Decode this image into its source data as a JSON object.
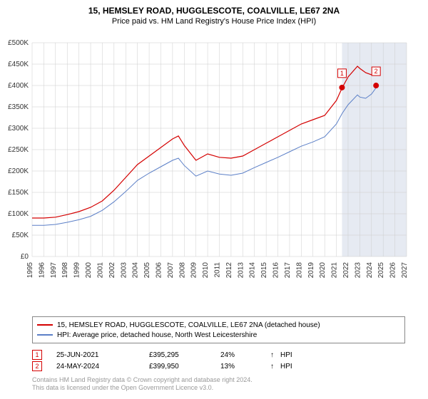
{
  "title": "15, HEMSLEY ROAD, HUGGLESCOTE, COALVILLE, LE67 2NA",
  "subtitle": "Price paid vs. HM Land Registry's House Price Index (HPI)",
  "chart": {
    "type": "line",
    "ylabel_prefix": "£",
    "ylim": [
      0,
      500000
    ],
    "ytick_step": 50000,
    "ytick_labels": [
      "£0",
      "£50K",
      "£100K",
      "£150K",
      "£200K",
      "£250K",
      "£300K",
      "£350K",
      "£400K",
      "£450K",
      "£500K"
    ],
    "xlim": [
      1995,
      2027
    ],
    "xtick_step": 1,
    "xtick_labels": [
      "1995",
      "1996",
      "1997",
      "1998",
      "1999",
      "2000",
      "2001",
      "2002",
      "2003",
      "2004",
      "2005",
      "2006",
      "2007",
      "2008",
      "2009",
      "2010",
      "2011",
      "2012",
      "2013",
      "2014",
      "2015",
      "2016",
      "2017",
      "2018",
      "2019",
      "2020",
      "2021",
      "2022",
      "2023",
      "2024",
      "2025",
      "2026",
      "2027"
    ],
    "background_color": "#ffffff",
    "grid_color": "#cccccc",
    "property_shade_color": "#e6eaf2",
    "label_fontsize": 10,
    "title_fontsize": 12,
    "series": [
      {
        "name": "property",
        "color": "#d40000",
        "width": 1.2,
        "label": "15, HEMSLEY ROAD, HUGGLESCOTE, COALVILLE, LE67 2NA (detached house)",
        "x": [
          1995,
          1996,
          1997,
          1998,
          1999,
          2000,
          2001,
          2002,
          2003,
          2004,
          2005,
          2006,
          2007,
          2007.5,
          2008,
          2009,
          2010,
          2011,
          2012,
          2013,
          2014,
          2015,
          2016,
          2017,
          2018,
          2019,
          2020,
          2021,
          2021.5,
          2022,
          2022.8,
          2023,
          2023.5,
          2024,
          2024.4
        ],
        "y": [
          90000,
          90000,
          92000,
          98000,
          105000,
          115000,
          130000,
          155000,
          185000,
          215000,
          235000,
          255000,
          275000,
          282000,
          260000,
          225000,
          240000,
          232000,
          230000,
          235000,
          250000,
          265000,
          280000,
          295000,
          310000,
          320000,
          330000,
          365000,
          395000,
          420000,
          445000,
          440000,
          430000,
          425000,
          430000
        ]
      },
      {
        "name": "hpi",
        "color": "#5b7fc7",
        "width": 1.0,
        "label": "HPI: Average price, detached house, North West Leicestershire",
        "x": [
          1995,
          1996,
          1997,
          1998,
          1999,
          2000,
          2001,
          2002,
          2003,
          2004,
          2005,
          2006,
          2007,
          2007.5,
          2008,
          2009,
          2010,
          2011,
          2012,
          2013,
          2014,
          2015,
          2016,
          2017,
          2018,
          2019,
          2020,
          2021,
          2021.5,
          2022,
          2022.8,
          2023,
          2023.5,
          2024,
          2024.4
        ],
        "y": [
          73000,
          73000,
          75000,
          80000,
          86000,
          94000,
          108000,
          128000,
          152000,
          178000,
          195000,
          210000,
          225000,
          230000,
          213000,
          188000,
          200000,
          193000,
          190000,
          195000,
          208000,
          220000,
          232000,
          245000,
          258000,
          268000,
          280000,
          310000,
          335000,
          355000,
          378000,
          373000,
          370000,
          380000,
          395000
        ]
      }
    ],
    "markers": [
      {
        "id": "1",
        "color": "#d40000",
        "x": 2021.48,
        "y": 395295
      },
      {
        "id": "2",
        "color": "#d40000",
        "x": 2024.39,
        "y": 399950
      }
    ],
    "marker_radius": 4,
    "marker_label_box": {
      "w": 12,
      "h": 12,
      "offset_y": -26
    }
  },
  "sales": [
    {
      "id": "1",
      "date": "25-JUN-2021",
      "price": "£395,295",
      "diff": "24%",
      "arrow": "↑",
      "note": "HPI",
      "color": "#d40000"
    },
    {
      "id": "2",
      "date": "24-MAY-2024",
      "price": "£399,950",
      "diff": "13%",
      "arrow": "↑",
      "note": "HPI",
      "color": "#d40000"
    }
  ],
  "copyright": {
    "line1": "Contains HM Land Registry data © Crown copyright and database right 2024.",
    "line2": "This data is licensed under the Open Government Licence v3.0."
  }
}
